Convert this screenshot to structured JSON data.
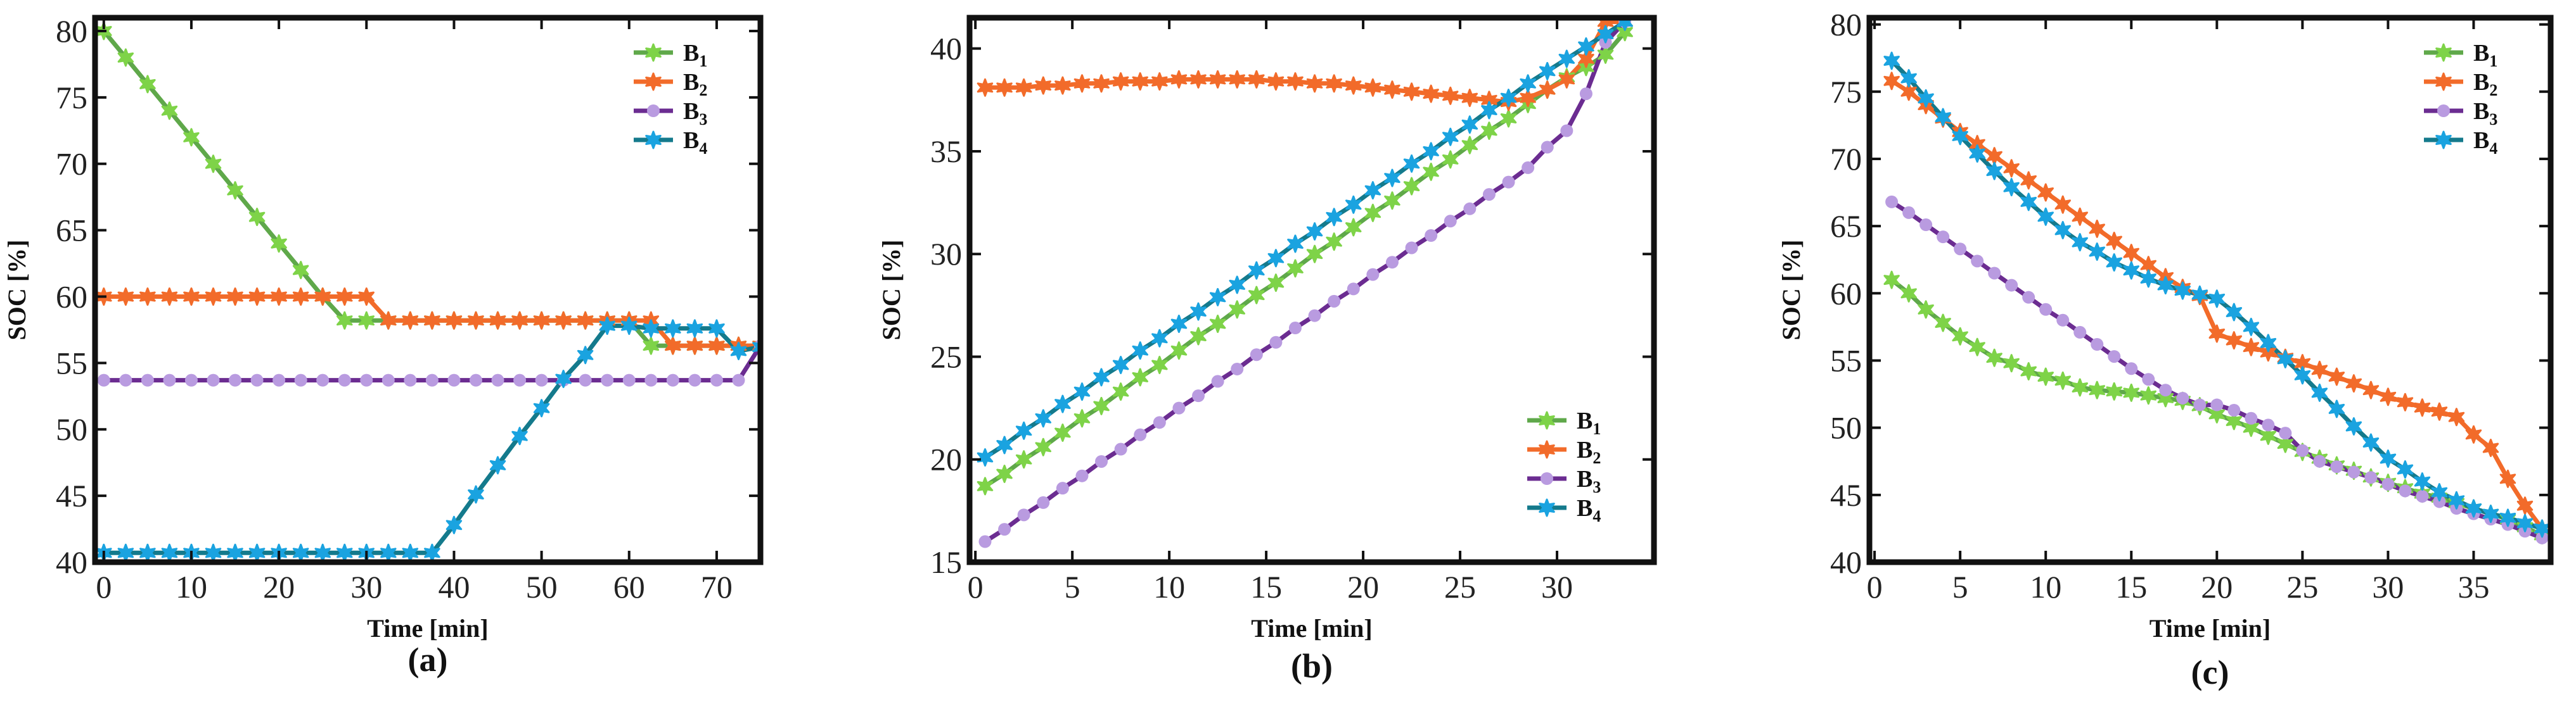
{
  "chart_data": [
    {
      "type": "line",
      "panel_label": "(a)",
      "xlabel": "Time [min]",
      "ylabel": "SOC [%]",
      "xlim": [
        -1,
        75
      ],
      "ylim": [
        40,
        81
      ],
      "xticks": [
        0,
        10,
        20,
        30,
        40,
        50,
        60,
        70
      ],
      "yticks": [
        40,
        45,
        50,
        55,
        60,
        65,
        70,
        75,
        80
      ],
      "legend_position": "top-right",
      "series": [
        {
          "name": "B",
          "subscript": "1",
          "color": "#7ed348",
          "line_color": "#5fa84a",
          "marker": "star",
          "x": [
            0,
            2.5,
            5,
            7.5,
            10,
            12.5,
            15,
            17.5,
            20,
            22.5,
            25,
            27.5,
            30,
            32.5,
            35,
            37.5,
            40,
            42.5,
            45,
            47.5,
            50,
            52.5,
            55,
            57.5,
            60,
            62.5,
            65,
            67.5,
            70,
            72.5,
            75
          ],
          "y": [
            80,
            78,
            76,
            74,
            72,
            70,
            68,
            66,
            64,
            62,
            60,
            58.2,
            58.2,
            58.2,
            58.2,
            58.2,
            58.2,
            58.2,
            58.2,
            58.2,
            58.2,
            58.2,
            58.2,
            58.2,
            58.2,
            56.3,
            56.3,
            56.3,
            56.3,
            56.3,
            56.3
          ]
        },
        {
          "name": "B",
          "subscript": "2",
          "color": "#f26b2a",
          "line_color": "#f26b2a",
          "marker": "star",
          "x": [
            0,
            2.5,
            5,
            7.5,
            10,
            12.5,
            15,
            17.5,
            20,
            22.5,
            25,
            27.5,
            30,
            32.5,
            35,
            37.5,
            40,
            42.5,
            45,
            47.5,
            50,
            52.5,
            55,
            57.5,
            60,
            62.5,
            65,
            67.5,
            70,
            72.5,
            75
          ],
          "y": [
            60,
            60,
            60,
            60,
            60,
            60,
            60,
            60,
            60,
            60,
            60,
            60,
            60,
            58.2,
            58.2,
            58.2,
            58.2,
            58.2,
            58.2,
            58.2,
            58.2,
            58.2,
            58.2,
            58.2,
            58.2,
            58.2,
            56.3,
            56.3,
            56.3,
            56.3,
            56.3
          ]
        },
        {
          "name": "B",
          "subscript": "3",
          "color": "#b99be0",
          "line_color": "#6b2c91",
          "marker": "circle",
          "x": [
            0,
            2.5,
            5,
            7.5,
            10,
            12.5,
            15,
            17.5,
            20,
            22.5,
            25,
            27.5,
            30,
            32.5,
            35,
            37.5,
            40,
            42.5,
            45,
            47.5,
            50,
            52.5,
            55,
            57.5,
            60,
            62.5,
            65,
            67.5,
            70,
            72.5,
            75
          ],
          "y": [
            53.7,
            53.7,
            53.7,
            53.7,
            53.7,
            53.7,
            53.7,
            53.7,
            53.7,
            53.7,
            53.7,
            53.7,
            53.7,
            53.7,
            53.7,
            53.7,
            53.7,
            53.7,
            53.7,
            53.7,
            53.7,
            53.7,
            53.7,
            53.7,
            53.7,
            53.7,
            53.7,
            53.7,
            53.7,
            53.7,
            56.3
          ]
        },
        {
          "name": "B",
          "subscript": "4",
          "color": "#1aa3e0",
          "line_color": "#147a8c",
          "marker": "star",
          "x": [
            0,
            2.5,
            5,
            7.5,
            10,
            12.5,
            15,
            17.5,
            20,
            22.5,
            25,
            27.5,
            30,
            32.5,
            35,
            37.5,
            40,
            42.5,
            45,
            47.5,
            50,
            52.5,
            55,
            57.5,
            60,
            62.5,
            65,
            67.5,
            70,
            72.5,
            75
          ],
          "y": [
            40.7,
            40.7,
            40.7,
            40.7,
            40.7,
            40.7,
            40.7,
            40.7,
            40.7,
            40.7,
            40.7,
            40.7,
            40.7,
            40.7,
            40.7,
            40.7,
            42.8,
            45.1,
            47.3,
            49.5,
            51.6,
            53.8,
            55.6,
            57.8,
            57.8,
            57.6,
            57.6,
            57.6,
            57.6,
            55.9,
            56.2
          ]
        }
      ]
    },
    {
      "type": "line",
      "panel_label": "(b)",
      "xlabel": "Time [min]",
      "ylabel": "SOC [%]",
      "xlim": [
        -0.3,
        35
      ],
      "ylim": [
        15,
        41.5
      ],
      "xticks": [
        0,
        5,
        10,
        15,
        20,
        25,
        30
      ],
      "yticks": [
        15,
        20,
        25,
        30,
        35,
        40
      ],
      "legend_position": "bottom-right",
      "series": [
        {
          "name": "B",
          "subscript": "1",
          "color": "#7ed348",
          "line_color": "#5fa84a",
          "marker": "star",
          "x": [
            0.5,
            1.5,
            2.5,
            3.5,
            4.5,
            5.5,
            6.5,
            7.5,
            8.5,
            9.5,
            10.5,
            11.5,
            12.5,
            13.5,
            14.5,
            15.5,
            16.5,
            17.5,
            18.5,
            19.5,
            20.5,
            21.5,
            22.5,
            23.5,
            24.5,
            25.5,
            26.5,
            27.5,
            28.5,
            29.5,
            30.5,
            31.5,
            32.5,
            33.5
          ],
          "y": [
            18.7,
            19.3,
            20.0,
            20.6,
            21.3,
            22.0,
            22.6,
            23.3,
            24.0,
            24.6,
            25.3,
            26.0,
            26.6,
            27.3,
            28.0,
            28.6,
            29.3,
            30.0,
            30.6,
            31.3,
            32.0,
            32.6,
            33.3,
            34.0,
            34.6,
            35.3,
            36.0,
            36.6,
            37.3,
            38.0,
            38.6,
            39.1,
            39.7,
            40.8
          ]
        },
        {
          "name": "B",
          "subscript": "2",
          "color": "#f26b2a",
          "line_color": "#f26b2a",
          "marker": "star",
          "x": [
            0.5,
            1.5,
            2.5,
            3.5,
            4.5,
            5.5,
            6.5,
            7.5,
            8.5,
            9.5,
            10.5,
            11.5,
            12.5,
            13.5,
            14.5,
            15.5,
            16.5,
            17.5,
            18.5,
            19.5,
            20.5,
            21.5,
            22.5,
            23.5,
            24.5,
            25.5,
            26.5,
            27.5,
            28.5,
            29.5,
            30.5,
            31.5,
            32.5,
            33.5
          ],
          "y": [
            38.1,
            38.1,
            38.1,
            38.2,
            38.2,
            38.3,
            38.3,
            38.4,
            38.4,
            38.4,
            38.5,
            38.5,
            38.5,
            38.5,
            38.5,
            38.4,
            38.4,
            38.3,
            38.3,
            38.2,
            38.1,
            38.0,
            37.9,
            37.8,
            37.7,
            37.6,
            37.5,
            37.4,
            37.6,
            38.0,
            38.5,
            39.5,
            41.3,
            41.3
          ]
        },
        {
          "name": "B",
          "subscript": "3",
          "color": "#b99be0",
          "line_color": "#6b2c91",
          "marker": "circle",
          "x": [
            0.5,
            1.5,
            2.5,
            3.5,
            4.5,
            5.5,
            6.5,
            7.5,
            8.5,
            9.5,
            10.5,
            11.5,
            12.5,
            13.5,
            14.5,
            15.5,
            16.5,
            17.5,
            18.5,
            19.5,
            20.5,
            21.5,
            22.5,
            23.5,
            24.5,
            25.5,
            26.5,
            27.5,
            28.5,
            29.5,
            30.5,
            31.5,
            32.5,
            33.5
          ],
          "y": [
            16.0,
            16.6,
            17.3,
            17.9,
            18.6,
            19.2,
            19.9,
            20.5,
            21.2,
            21.8,
            22.5,
            23.1,
            23.8,
            24.4,
            25.1,
            25.7,
            26.4,
            27.0,
            27.7,
            28.3,
            29.0,
            29.6,
            30.3,
            30.9,
            31.6,
            32.2,
            32.9,
            33.5,
            34.2,
            35.2,
            36.0,
            37.8,
            40.3,
            41.3
          ]
        },
        {
          "name": "B",
          "subscript": "4",
          "color": "#1aa3e0",
          "line_color": "#147a8c",
          "marker": "star",
          "x": [
            0.5,
            1.5,
            2.5,
            3.5,
            4.5,
            5.5,
            6.5,
            7.5,
            8.5,
            9.5,
            10.5,
            11.5,
            12.5,
            13.5,
            14.5,
            15.5,
            16.5,
            17.5,
            18.5,
            19.5,
            20.5,
            21.5,
            22.5,
            23.5,
            24.5,
            25.5,
            26.5,
            27.5,
            28.5,
            29.5,
            30.5,
            31.5,
            32.5,
            33.5
          ],
          "y": [
            20.1,
            20.7,
            21.4,
            22.0,
            22.7,
            23.3,
            24.0,
            24.6,
            25.3,
            25.9,
            26.6,
            27.2,
            27.9,
            28.5,
            29.2,
            29.8,
            30.5,
            31.1,
            31.8,
            32.4,
            33.1,
            33.7,
            34.4,
            35.0,
            35.7,
            36.3,
            37.0,
            37.6,
            38.3,
            38.9,
            39.5,
            40.1,
            40.7,
            41.3
          ]
        }
      ]
    },
    {
      "type": "line",
      "panel_label": "(c)",
      "xlabel": "Time [min]",
      "ylabel": "SOC [%]",
      "xlim": [
        -0.3,
        39.5
      ],
      "ylim": [
        40,
        80.5
      ],
      "xticks": [
        0,
        5,
        10,
        15,
        20,
        25,
        30,
        35
      ],
      "yticks": [
        40,
        45,
        50,
        55,
        60,
        65,
        70,
        75,
        80
      ],
      "legend_position": "top-right",
      "series": [
        {
          "name": "B",
          "subscript": "1",
          "color": "#7ed348",
          "line_color": "#5fa84a",
          "marker": "star",
          "x": [
            1,
            2,
            3,
            4,
            5,
            6,
            7,
            8,
            9,
            10,
            11,
            12,
            13,
            14,
            15,
            16,
            17,
            18,
            19,
            20,
            21,
            22,
            23,
            24,
            25,
            26,
            27,
            28,
            29,
            30,
            31,
            32,
            33,
            34,
            35,
            36,
            37,
            38,
            39
          ],
          "y": [
            61,
            60,
            58.8,
            57.8,
            56.8,
            56,
            55.2,
            54.8,
            54.2,
            53.8,
            53.5,
            53,
            52.8,
            52.7,
            52.6,
            52.4,
            52.2,
            52,
            51.6,
            51,
            50.5,
            50,
            49.4,
            48.8,
            48.2,
            47.7,
            47.2,
            46.8,
            46.3,
            45.9,
            45.5,
            45.1,
            44.8,
            44.4,
            44.0,
            43.6,
            43.2,
            42.6,
            42.0
          ]
        },
        {
          "name": "B",
          "subscript": "2",
          "color": "#f26b2a",
          "line_color": "#f26b2a",
          "marker": "star",
          "x": [
            1,
            2,
            3,
            4,
            5,
            6,
            7,
            8,
            9,
            10,
            11,
            12,
            13,
            14,
            15,
            16,
            17,
            18,
            19,
            20,
            21,
            22,
            23,
            24,
            25,
            26,
            27,
            28,
            29,
            30,
            31,
            32,
            33,
            34,
            35,
            36,
            37,
            38,
            39
          ],
          "y": [
            75.8,
            75,
            74,
            73,
            72,
            71.1,
            70.2,
            69.3,
            68.4,
            67.5,
            66.6,
            65.7,
            64.8,
            63.9,
            63,
            62.1,
            61.2,
            60.4,
            59.8,
            57,
            56.5,
            56,
            55.6,
            55.2,
            54.8,
            54.3,
            53.8,
            53.3,
            52.8,
            52.3,
            51.9,
            51.5,
            51.2,
            50.8,
            49.5,
            48.5,
            46.2,
            44.2,
            42.5
          ]
        },
        {
          "name": "B",
          "subscript": "3",
          "color": "#b99be0",
          "line_color": "#6b2c91",
          "marker": "circle",
          "x": [
            1,
            2,
            3,
            4,
            5,
            6,
            7,
            8,
            9,
            10,
            11,
            12,
            13,
            14,
            15,
            16,
            17,
            18,
            19,
            20,
            21,
            22,
            23,
            24,
            25,
            26,
            27,
            28,
            29,
            30,
            31,
            32,
            33,
            34,
            35,
            36,
            37,
            38,
            39
          ],
          "y": [
            66.8,
            66,
            65.1,
            64.2,
            63.3,
            62.4,
            61.5,
            60.6,
            59.7,
            58.8,
            58,
            57.1,
            56.2,
            55.3,
            54.4,
            53.6,
            52.8,
            52.2,
            51.7,
            51.7,
            51.3,
            50.7,
            50.2,
            49.6,
            48.3,
            47.5,
            47.1,
            46.7,
            46.3,
            45.8,
            45.3,
            44.9,
            44.5,
            44.0,
            43.6,
            43.2,
            42.8,
            42.3,
            41.8
          ]
        },
        {
          "name": "B",
          "subscript": "4",
          "color": "#1aa3e0",
          "line_color": "#147a8c",
          "marker": "star",
          "x": [
            1,
            2,
            3,
            4,
            5,
            6,
            7,
            8,
            9,
            10,
            11,
            12,
            13,
            14,
            15,
            16,
            17,
            18,
            19,
            20,
            21,
            22,
            23,
            24,
            25,
            26,
            27,
            28,
            29,
            30,
            31,
            32,
            33,
            34,
            35,
            36,
            37,
            38,
            39
          ],
          "y": [
            77.3,
            76,
            74.5,
            73.1,
            71.7,
            70.4,
            69.1,
            67.9,
            66.8,
            65.7,
            64.7,
            63.8,
            63.1,
            62.3,
            61.7,
            61.1,
            60.6,
            60.2,
            59.9,
            59.6,
            58.6,
            57.5,
            56.3,
            55.1,
            53.9,
            52.6,
            51.4,
            50.1,
            48.9,
            47.7,
            46.9,
            46.0,
            45.2,
            44.6,
            44.0,
            43.6,
            43.3,
            42.9,
            42.5
          ]
        }
      ]
    }
  ]
}
